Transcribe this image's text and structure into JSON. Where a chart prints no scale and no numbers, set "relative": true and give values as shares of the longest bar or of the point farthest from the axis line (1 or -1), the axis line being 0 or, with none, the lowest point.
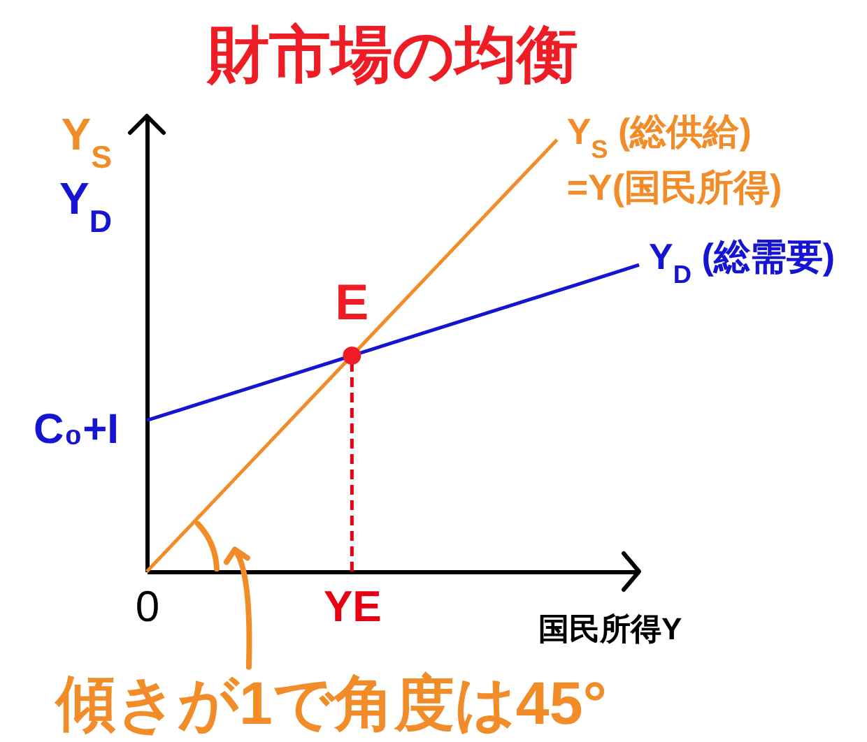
{
  "chart_data": {
    "type": "line",
    "title": "財市場の均衡",
    "xlabel": "国民所得Y",
    "ylabel": "Y$_{S}$ Y$_{D}$",
    "relative": true,
    "categories": [
      "0",
      null,
      null,
      null,
      null,
      "YE",
      null,
      null,
      null,
      null,
      null,
      null,
      null
    ],
    "tick_labels": "x",
    "series": [
      {
        "type": "scatter",
        "x": [
          "YE"
        ],
        "values": [
          0.5
        ],
        "color": "#ee1c24",
        "marker": "circle"
      },
      {
        "x": [
          "YE",
          "YE"
        ],
        "values": [
          0,
          0.5
        ],
        "color": "#e60012",
        "line_style": "dashed"
      },
      {
        "name": "Y$_{S}$ (総供給) =Y(国民所得)",
        "values": [
          0,
          0.1,
          0.2,
          0.3,
          0.4,
          0.5,
          0.6,
          0.7,
          0.8,
          0.9,
          1.0,
          null,
          null
        ],
        "color": "#f28c28"
      },
      {
        "name": "Y$_{D}$ (総需要)",
        "values": [
          0.35,
          0.38,
          0.41,
          0.44,
          0.47,
          0.5,
          0.53,
          0.56,
          0.59,
          0.62,
          0.65,
          0.68,
          0.71
        ],
        "color": "#1414d2"
      }
    ],
    "annotations": [
      {
        "text": "E",
        "x": "YE",
        "y": 0.5
      },
      {
        "text": "C₀+I",
        "x": "0",
        "y": 0.35
      },
      "傾きが1で角度は45°"
    ]
  }
}
